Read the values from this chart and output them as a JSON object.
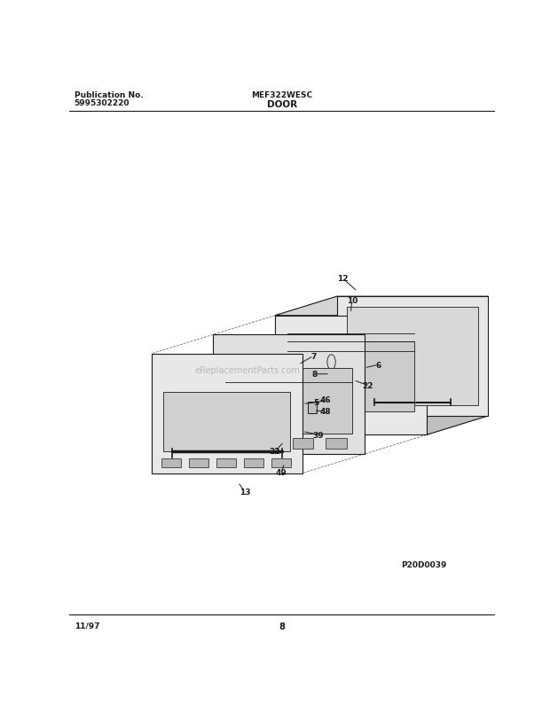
{
  "title_model": "MEF322WESC",
  "title_section": "DOOR",
  "pub_no_label": "Publication No.",
  "pub_no_value": "5995302220",
  "date": "11/97",
  "page": "8",
  "diagram_id": "P20D0039",
  "bg_color": "#ffffff",
  "line_color": "#1a1a1a",
  "watermark": "eReplacementParts.com",
  "face_color": "#e8e8e8",
  "face_color2": "#d8d8d8",
  "face_color3": "#c8c8c8",
  "top_color": "#d0d0d0",
  "side_color": "#b8b8b8"
}
